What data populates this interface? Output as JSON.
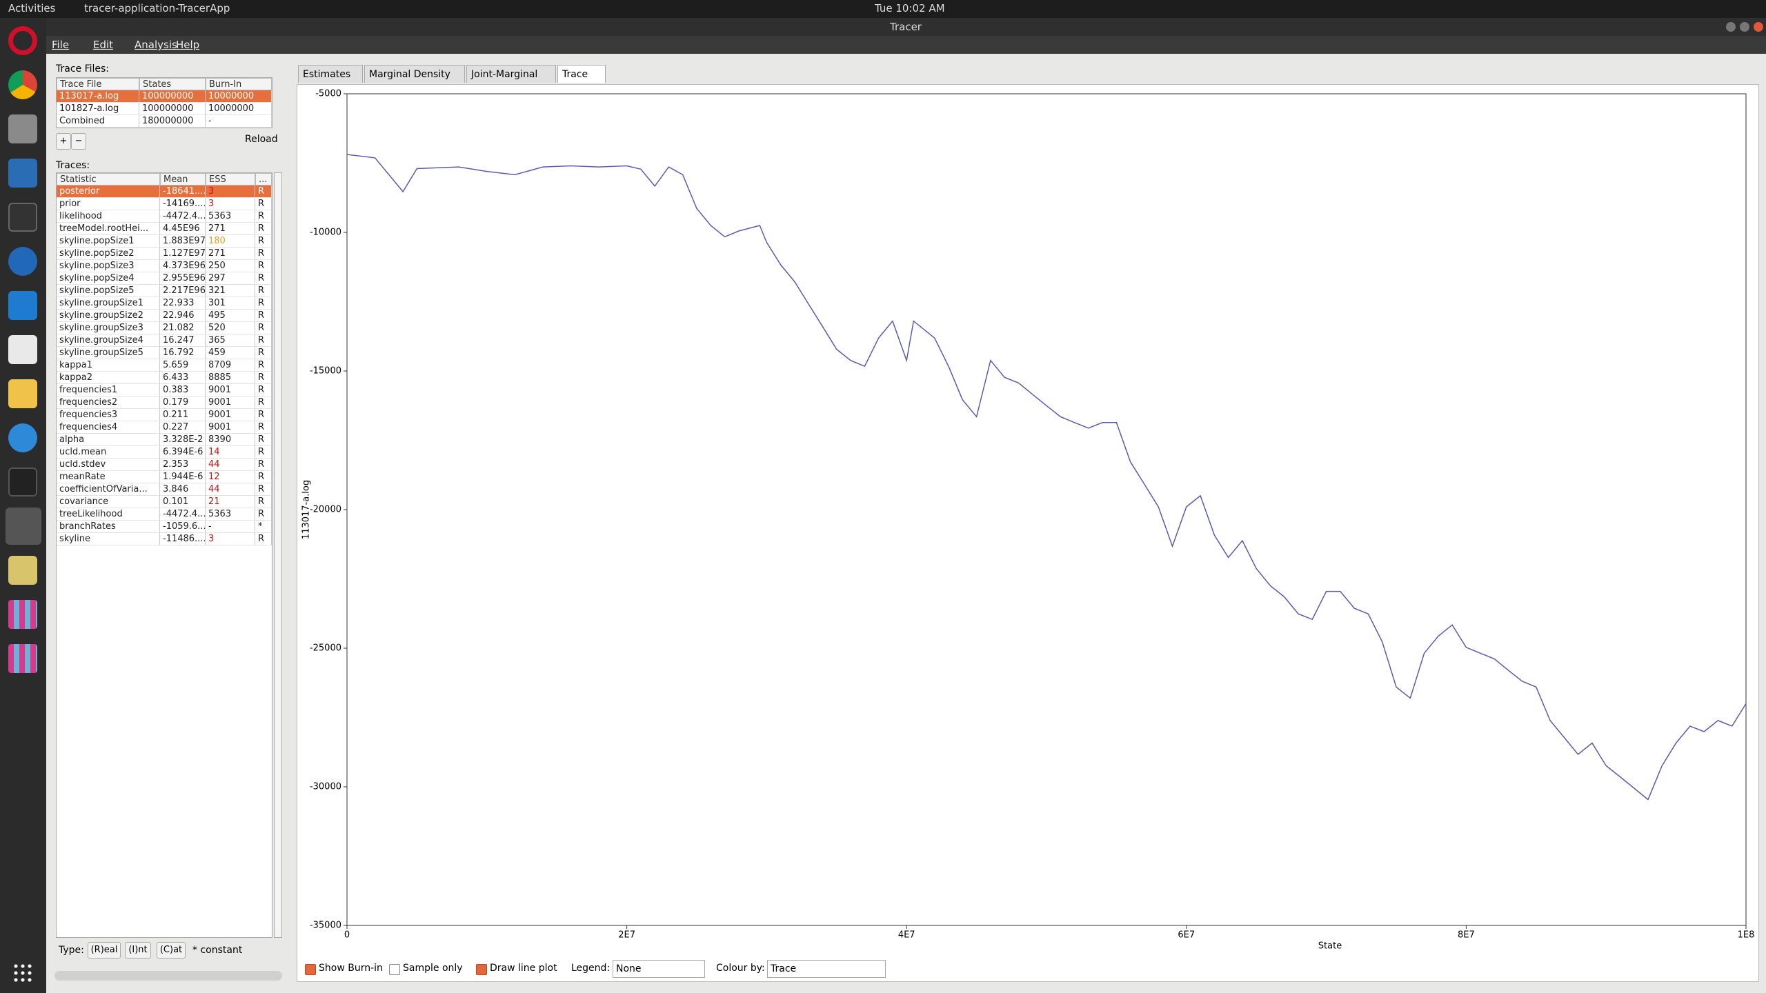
{
  "topbar": {
    "activities": "Activities",
    "app": "tracer-application-TracerApp",
    "clock": "Tue 10:02 AM"
  },
  "window": {
    "title": "Tracer"
  },
  "menu": [
    "File",
    "Edit",
    "Analysis",
    "Help"
  ],
  "trace_files": {
    "label": "Trace Files:",
    "columns": [
      "Trace File",
      "States",
      "Burn-In"
    ],
    "rows": [
      [
        "113017-a.log",
        "100000000",
        "10000000"
      ],
      [
        "101827-a.log",
        "100000000",
        "10000000"
      ],
      [
        "Combined",
        "180000000",
        "-"
      ]
    ],
    "add": "+",
    "remove": "−",
    "reload": "Reload"
  },
  "traces": {
    "label": "Traces:",
    "columns": [
      "Statistic",
      "Mean",
      "ESS",
      "..."
    ],
    "rows": [
      [
        "posterior",
        "-18641....",
        "3",
        "R"
      ],
      [
        "prior",
        "-14169....",
        "3",
        "R"
      ],
      [
        "likelihood",
        "-4472.4...",
        "5363",
        "R"
      ],
      [
        "treeModel.rootHei...",
        "4.45E96",
        "271",
        "R"
      ],
      [
        "skyline.popSize1",
        "1.883E97",
        "180",
        "R"
      ],
      [
        "skyline.popSize2",
        "1.127E97",
        "271",
        "R"
      ],
      [
        "skyline.popSize3",
        "4.373E96",
        "250",
        "R"
      ],
      [
        "skyline.popSize4",
        "2.955E96",
        "297",
        "R"
      ],
      [
        "skyline.popSize5",
        "2.217E96",
        "321",
        "R"
      ],
      [
        "skyline.groupSize1",
        "22.933",
        "301",
        "R"
      ],
      [
        "skyline.groupSize2",
        "22.946",
        "495",
        "R"
      ],
      [
        "skyline.groupSize3",
        "21.082",
        "520",
        "R"
      ],
      [
        "skyline.groupSize4",
        "16.247",
        "365",
        "R"
      ],
      [
        "skyline.groupSize5",
        "16.792",
        "459",
        "R"
      ],
      [
        "kappa1",
        "5.659",
        "8709",
        "R"
      ],
      [
        "kappa2",
        "6.433",
        "8885",
        "R"
      ],
      [
        "frequencies1",
        "0.383",
        "9001",
        "R"
      ],
      [
        "frequencies2",
        "0.179",
        "9001",
        "R"
      ],
      [
        "frequencies3",
        "0.211",
        "9001",
        "R"
      ],
      [
        "frequencies4",
        "0.227",
        "9001",
        "R"
      ],
      [
        "alpha",
        "3.328E-2",
        "8390",
        "R"
      ],
      [
        "ucld.mean",
        "6.394E-6",
        "14",
        "R"
      ],
      [
        "ucld.stdev",
        "2.353",
        "44",
        "R"
      ],
      [
        "meanRate",
        "1.944E-6",
        "12",
        "R"
      ],
      [
        "coefficientOfVaria...",
        "3.846",
        "44",
        "R"
      ],
      [
        "covariance",
        "0.101",
        "21",
        "R"
      ],
      [
        "treeLikelihood",
        "-4472.4...",
        "5363",
        "R"
      ],
      [
        "branchRates",
        "-1059.6...",
        "-",
        "*"
      ],
      [
        "skyline",
        "-11486....",
        "3",
        "R"
      ]
    ]
  },
  "type_legend": {
    "label": "Type:",
    "real": "(R)eal",
    "int": "(I)nt",
    "cat": "(C)at",
    "constant": "* constant"
  },
  "tabs": [
    "Estimates",
    "Marginal Density",
    "Joint-Marginal",
    "Trace"
  ],
  "chart_data": {
    "type": "line",
    "x_label": "State",
    "y_label": "113017-a.log",
    "color": "#5a5ab4",
    "xlim": [
      0,
      100000000
    ],
    "ylim": [
      -35000,
      -5000
    ],
    "xticks": [
      0,
      {
        "value": 20000000,
        "label": "2E7"
      },
      {
        "value": 40000000,
        "label": "4E7"
      },
      {
        "value": 60000000,
        "label": "6E7"
      },
      {
        "value": 80000000,
        "label": "8E7"
      },
      {
        "value": 100000000,
        "label": "1E8"
      }
    ],
    "yticks": [
      -5000,
      -10000,
      -15000,
      -20000,
      -25000,
      -30000,
      -35000
    ],
    "x": [
      0,
      2000000,
      4000000,
      5000000,
      8000000,
      10000000,
      12000000,
      14000000,
      16000000,
      18000000,
      20000000,
      21000000,
      22000000,
      23000000,
      24000000,
      25000000,
      26000000,
      27000000,
      28000000,
      29500000,
      30000000,
      31000000,
      32000000,
      33000000,
      34000000,
      35000000,
      36000000,
      37000000,
      38000000,
      39000000,
      40000000,
      40500000,
      42000000,
      43000000,
      44000000,
      45000000,
      46000000,
      47000000,
      48000000,
      49000000,
      50000000,
      51000000,
      52000000,
      53000000,
      54000000,
      55000000,
      56000000,
      57000000,
      58000000,
      59000000,
      60000000,
      61000000,
      62000000,
      63000000,
      64000000,
      65000000,
      66000000,
      67000000,
      68000000,
      69000000,
      70000000,
      71000000,
      72000000,
      73000000,
      74000000,
      75000000,
      76000000,
      77000000,
      78000000,
      79000000,
      80000000,
      81000000,
      82000000,
      83000000,
      84000000,
      85000000,
      86000000,
      87000000,
      88000000,
      89000000,
      90000000,
      91000000,
      92000000,
      93000000,
      94000000,
      95000000,
      96000000,
      97000000,
      98000000,
      99000000,
      100000000
    ],
    "values": [
      -7190,
      -7310,
      -8530,
      -7700,
      -7640,
      -7800,
      -7920,
      -7640,
      -7600,
      -7640,
      -7600,
      -7720,
      -8330,
      -7640,
      -7920,
      -9140,
      -9750,
      -10160,
      -9950,
      -9750,
      -10360,
      -11170,
      -11780,
      -12590,
      -13400,
      -14220,
      -14620,
      -14830,
      -13810,
      -13200,
      -14620,
      -13200,
      -13810,
      -14830,
      -16040,
      -16650,
      -14620,
      -15230,
      -15430,
      -15840,
      -16250,
      -16650,
      -16860,
      -17060,
      -16860,
      -16860,
      -18280,
      -19090,
      -19900,
      -21320,
      -19900,
      -19500,
      -20920,
      -21730,
      -21120,
      -22130,
      -22750,
      -23150,
      -23760,
      -23960,
      -22950,
      -22950,
      -23560,
      -23760,
      -24770,
      -26400,
      -26800,
      -25180,
      -24570,
      -24160,
      -24970,
      -25180,
      -25380,
      -25790,
      -26190,
      -26400,
      -27610,
      -28220,
      -28830,
      -28420,
      -29240,
      -29640,
      -30050,
      -30460,
      -29240,
      -28420,
      -27810,
      -28010,
      -27610,
      -27810,
      -27000
    ]
  },
  "controls": {
    "show_burn_in": "Show Burn-in",
    "sample_only": "Sample only",
    "draw_line_plot": "Draw line plot",
    "legend_label": "Legend:",
    "legend_value": "None",
    "colour_label": "Colour by:",
    "colour_value": "Trace"
  }
}
